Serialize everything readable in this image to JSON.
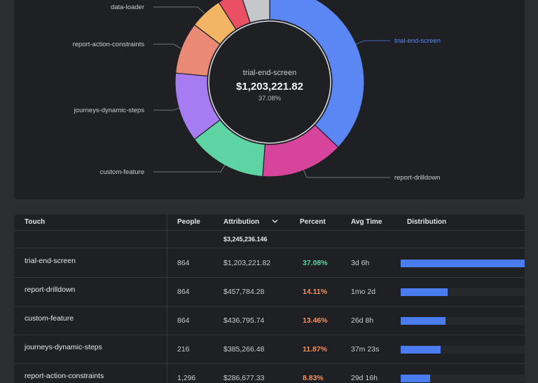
{
  "chart_data": {
    "type": "pie",
    "center": {
      "label": "trial-end-screen",
      "value": "$1,203,221.82",
      "percent": "37.08%"
    },
    "slices": [
      {
        "label": "trial-end-screen",
        "value": 37.08,
        "color": "#5b87f5"
      },
      {
        "label": "report-drilldown",
        "value": 14.11,
        "color": "#d6449b"
      },
      {
        "label": "custom-feature",
        "value": 13.46,
        "color": "#5ed3a3"
      },
      {
        "label": "journeys-dynamic-steps",
        "value": 11.87,
        "color": "#a77cf3"
      },
      {
        "label": "report-action-constraints",
        "value": 8.83,
        "color": "#ea8a76"
      },
      {
        "label": "data-loader",
        "value": 5.6,
        "color": "#f1b564"
      },
      {
        "label": "",
        "value": 4.0,
        "color": "#ea4f64"
      },
      {
        "label": "",
        "value": 5.05,
        "color": "#c6c7ca"
      }
    ],
    "start_angle_deg": 0,
    "direction": "clockwise",
    "callout_labels": [
      "data-loader",
      "report-action-constraints",
      "journeys-dynamic-steps",
      "custom-feature",
      "trial-end-screen",
      "report-drilldown"
    ]
  },
  "table": {
    "headers": {
      "touch": "Touch",
      "people": "People",
      "attribution": "Attribution",
      "percent": "Percent",
      "avg_time": "Avg Time",
      "distribution": "Distribution"
    },
    "sort_icon": "chevron-down-icon",
    "total_attribution": "$3,245,236.146",
    "rows": [
      {
        "touch": "trial-end-screen",
        "people": "864",
        "attribution": "$1,203,221.82",
        "percent": "37.08%",
        "percent_color": "#5ed3a3",
        "avg_time": "3d 6h",
        "distribution": 1.0
      },
      {
        "touch": "report-drilldown",
        "people": "864",
        "attribution": "$457,784.28",
        "percent": "14.11%",
        "percent_color": "#f0915f",
        "avg_time": "1mo 2d",
        "distribution": 0.38
      },
      {
        "touch": "custom-feature",
        "people": "864",
        "attribution": "$436,795.74",
        "percent": "13.46%",
        "percent_color": "#f0915f",
        "avg_time": "26d 8h",
        "distribution": 0.36
      },
      {
        "touch": "journeys-dynamic-steps",
        "people": "216",
        "attribution": "$385,266.48",
        "percent": "11.87%",
        "percent_color": "#f0915f",
        "avg_time": "37m 23s",
        "distribution": 0.32
      },
      {
        "touch": "report-action-constraints",
        "people": "1,296",
        "attribution": "$286,677.33",
        "percent": "8.83%",
        "percent_color": "#f0915f",
        "avg_time": "29d 16h",
        "distribution": 0.24
      }
    ]
  }
}
